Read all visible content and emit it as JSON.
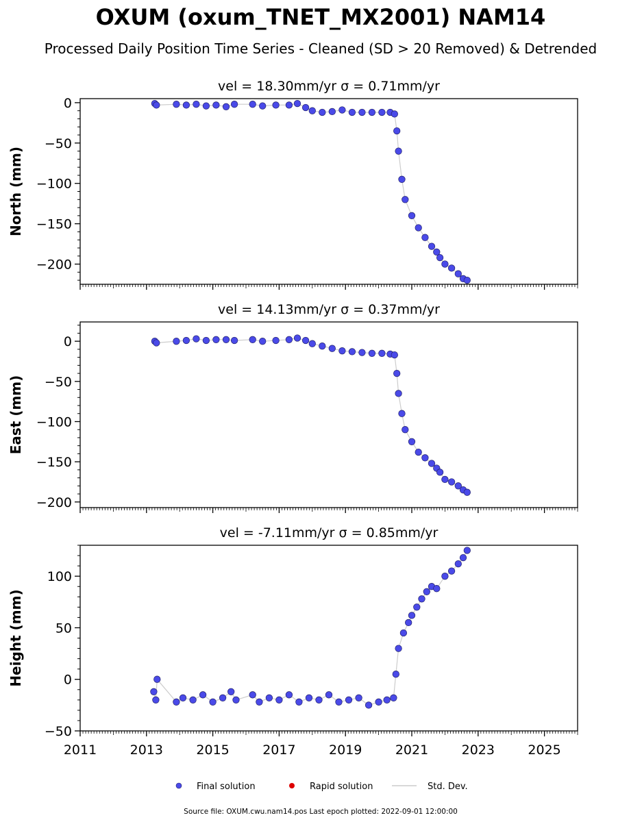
{
  "chart_data": {
    "type": "scatter",
    "title": "OXUM (oxum_TNET_MX2001) NAM14",
    "subtitle": "Processed Daily Position Time Series - Cleaned (SD > 20 Removed) & Detrended",
    "x_axis": {
      "range": [
        2011,
        2026
      ],
      "ticks": [
        2011,
        2013,
        2015,
        2017,
        2019,
        2021,
        2023,
        2025
      ],
      "tick_labels": [
        "2011",
        "2013",
        "2015",
        "2017",
        "2019",
        "2021",
        "2023",
        "2025"
      ]
    },
    "panels": [
      {
        "title": "vel = 18.30mm/yr   σ = 0.71mm/yr",
        "ylabel": "North (mm)",
        "ylim": [
          -225,
          5
        ],
        "yticks": [
          0,
          -50,
          -100,
          -150,
          -200
        ],
        "ytick_labels": [
          "0",
          "−50",
          "−100",
          "−150",
          "−200"
        ],
        "series": [
          {
            "name": "Final solution",
            "points": [
              [
                2013.25,
                -1
              ],
              [
                2013.3,
                -3
              ],
              [
                2013.9,
                -2
              ],
              [
                2014.2,
                -3
              ],
              [
                2014.5,
                -2
              ],
              [
                2014.8,
                -4
              ],
              [
                2015.1,
                -3
              ],
              [
                2015.4,
                -5
              ],
              [
                2015.65,
                -2
              ],
              [
                2016.2,
                -2
              ],
              [
                2016.5,
                -4
              ],
              [
                2016.9,
                -3
              ],
              [
                2017.3,
                -3
              ],
              [
                2017.55,
                -1
              ],
              [
                2017.8,
                -6
              ],
              [
                2018.0,
                -10
              ],
              [
                2018.3,
                -12
              ],
              [
                2018.6,
                -11
              ],
              [
                2018.9,
                -9
              ],
              [
                2019.2,
                -12
              ],
              [
                2019.5,
                -12
              ],
              [
                2019.8,
                -12
              ],
              [
                2020.1,
                -12
              ],
              [
                2020.35,
                -12
              ],
              [
                2020.48,
                -14
              ],
              [
                2020.55,
                -35
              ],
              [
                2020.6,
                -60
              ],
              [
                2020.7,
                -95
              ],
              [
                2020.8,
                -120
              ],
              [
                2021.0,
                -140
              ],
              [
                2021.2,
                -155
              ],
              [
                2021.4,
                -167
              ],
              [
                2021.6,
                -178
              ],
              [
                2021.75,
                -185
              ],
              [
                2021.85,
                -192
              ],
              [
                2022.0,
                -200
              ],
              [
                2022.2,
                -205
              ],
              [
                2022.4,
                -212
              ],
              [
                2022.55,
                -218
              ],
              [
                2022.67,
                -220
              ]
            ]
          }
        ]
      },
      {
        "title": "vel = 14.13mm/yr   σ = 0.37mm/yr",
        "ylabel": "East (mm)",
        "ylim": [
          -207,
          24
        ],
        "yticks": [
          0,
          -50,
          -100,
          -150,
          -200
        ],
        "ytick_labels": [
          "0",
          "−50",
          "−100",
          "−150",
          "−200"
        ],
        "series": [
          {
            "name": "Final solution",
            "points": [
              [
                2013.25,
                0
              ],
              [
                2013.3,
                -2
              ],
              [
                2013.9,
                0
              ],
              [
                2014.2,
                1
              ],
              [
                2014.5,
                3
              ],
              [
                2014.8,
                1
              ],
              [
                2015.1,
                2
              ],
              [
                2015.4,
                2
              ],
              [
                2015.65,
                1
              ],
              [
                2016.2,
                2
              ],
              [
                2016.5,
                0
              ],
              [
                2016.9,
                1
              ],
              [
                2017.3,
                2
              ],
              [
                2017.55,
                4
              ],
              [
                2017.8,
                1
              ],
              [
                2018.0,
                -3
              ],
              [
                2018.3,
                -6
              ],
              [
                2018.6,
                -9
              ],
              [
                2018.9,
                -12
              ],
              [
                2019.2,
                -13
              ],
              [
                2019.5,
                -14
              ],
              [
                2019.8,
                -15
              ],
              [
                2020.1,
                -15
              ],
              [
                2020.35,
                -16
              ],
              [
                2020.48,
                -17
              ],
              [
                2020.55,
                -40
              ],
              [
                2020.6,
                -65
              ],
              [
                2020.7,
                -90
              ],
              [
                2020.8,
                -110
              ],
              [
                2021.0,
                -125
              ],
              [
                2021.2,
                -138
              ],
              [
                2021.4,
                -145
              ],
              [
                2021.6,
                -152
              ],
              [
                2021.75,
                -158
              ],
              [
                2021.85,
                -163
              ],
              [
                2022.0,
                -172
              ],
              [
                2022.2,
                -175
              ],
              [
                2022.4,
                -180
              ],
              [
                2022.55,
                -185
              ],
              [
                2022.67,
                -188
              ]
            ]
          }
        ]
      },
      {
        "title": "vel = -7.11mm/yr   σ = 0.85mm/yr",
        "ylabel": "Height (mm)",
        "ylim": [
          -50,
          130
        ],
        "yticks": [
          100,
          50,
          0,
          -50
        ],
        "ytick_labels": [
          "100",
          "50",
          "0",
          "−50"
        ],
        "series": [
          {
            "name": "Final solution",
            "points": [
              [
                2013.22,
                -12
              ],
              [
                2013.28,
                -20
              ],
              [
                2013.32,
                0
              ],
              [
                2013.9,
                -22
              ],
              [
                2014.1,
                -18
              ],
              [
                2014.4,
                -20
              ],
              [
                2014.7,
                -15
              ],
              [
                2015.0,
                -22
              ],
              [
                2015.3,
                -18
              ],
              [
                2015.55,
                -12
              ],
              [
                2015.7,
                -20
              ],
              [
                2016.2,
                -15
              ],
              [
                2016.4,
                -22
              ],
              [
                2016.7,
                -18
              ],
              [
                2017.0,
                -20
              ],
              [
                2017.3,
                -15
              ],
              [
                2017.6,
                -22
              ],
              [
                2017.9,
                -18
              ],
              [
                2018.2,
                -20
              ],
              [
                2018.5,
                -15
              ],
              [
                2018.8,
                -22
              ],
              [
                2019.1,
                -20
              ],
              [
                2019.4,
                -18
              ],
              [
                2019.7,
                -25
              ],
              [
                2020.0,
                -22
              ],
              [
                2020.25,
                -20
              ],
              [
                2020.45,
                -18
              ],
              [
                2020.52,
                5
              ],
              [
                2020.6,
                30
              ],
              [
                2020.75,
                45
              ],
              [
                2020.9,
                55
              ],
              [
                2021.0,
                62
              ],
              [
                2021.15,
                70
              ],
              [
                2021.3,
                78
              ],
              [
                2021.45,
                85
              ],
              [
                2021.6,
                90
              ],
              [
                2021.75,
                88
              ],
              [
                2022.0,
                100
              ],
              [
                2022.2,
                105
              ],
              [
                2022.4,
                112
              ],
              [
                2022.55,
                118
              ],
              [
                2022.67,
                125
              ]
            ]
          }
        ]
      }
    ],
    "legend": {
      "placement": "bottom-center",
      "entries": [
        {
          "label": "Final solution",
          "color": "#4a4ae8"
        },
        {
          "label": "Rapid solution",
          "color": "#dd0000"
        },
        {
          "label": "Std. Dev.",
          "color": "#cccccc"
        }
      ]
    },
    "footer": "Source file: OXUM.cwu.nam14.pos  Last epoch plotted: 2022-09-01 12:00:00",
    "colors": {
      "final": "#4a4ae8",
      "rapid": "#dd0000",
      "stddev": "#cccccc"
    }
  }
}
